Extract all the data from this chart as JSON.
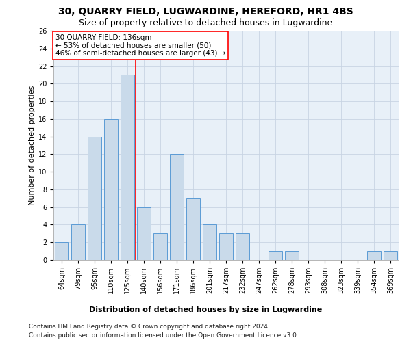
{
  "title": "30, QUARRY FIELD, LUGWARDINE, HEREFORD, HR1 4BS",
  "subtitle": "Size of property relative to detached houses in Lugwardine",
  "xlabel": "Distribution of detached houses by size in Lugwardine",
  "ylabel": "Number of detached properties",
  "categories": [
    "64sqm",
    "79sqm",
    "95sqm",
    "110sqm",
    "125sqm",
    "140sqm",
    "156sqm",
    "171sqm",
    "186sqm",
    "201sqm",
    "217sqm",
    "232sqm",
    "247sqm",
    "262sqm",
    "278sqm",
    "293sqm",
    "308sqm",
    "323sqm",
    "339sqm",
    "354sqm",
    "369sqm"
  ],
  "values": [
    2,
    4,
    14,
    16,
    21,
    6,
    3,
    12,
    7,
    4,
    3,
    3,
    0,
    1,
    1,
    0,
    0,
    0,
    0,
    1,
    1
  ],
  "bar_color": "#c9daea",
  "bar_edge_color": "#5b9bd5",
  "vline_x_index": 4,
  "vline_color": "#ff0000",
  "ylim": [
    0,
    26
  ],
  "yticks": [
    0,
    2,
    4,
    6,
    8,
    10,
    12,
    14,
    16,
    18,
    20,
    22,
    24,
    26
  ],
  "annotation_text": "30 QUARRY FIELD: 136sqm\n← 53% of detached houses are smaller (50)\n46% of semi-detached houses are larger (43) →",
  "annotation_box_color": "#ffffff",
  "annotation_box_edge_color": "#ff0000",
  "footer_line1": "Contains HM Land Registry data © Crown copyright and database right 2024.",
  "footer_line2": "Contains public sector information licensed under the Open Government Licence v3.0.",
  "background_color": "#ffffff",
  "plot_bg_color": "#e8f0f8",
  "grid_color": "#c8d4e3",
  "title_fontsize": 10,
  "subtitle_fontsize": 9,
  "ylabel_fontsize": 8,
  "tick_fontsize": 7,
  "xlabel_fontsize": 8,
  "footer_fontsize": 6.5,
  "annotation_fontsize": 7.5
}
